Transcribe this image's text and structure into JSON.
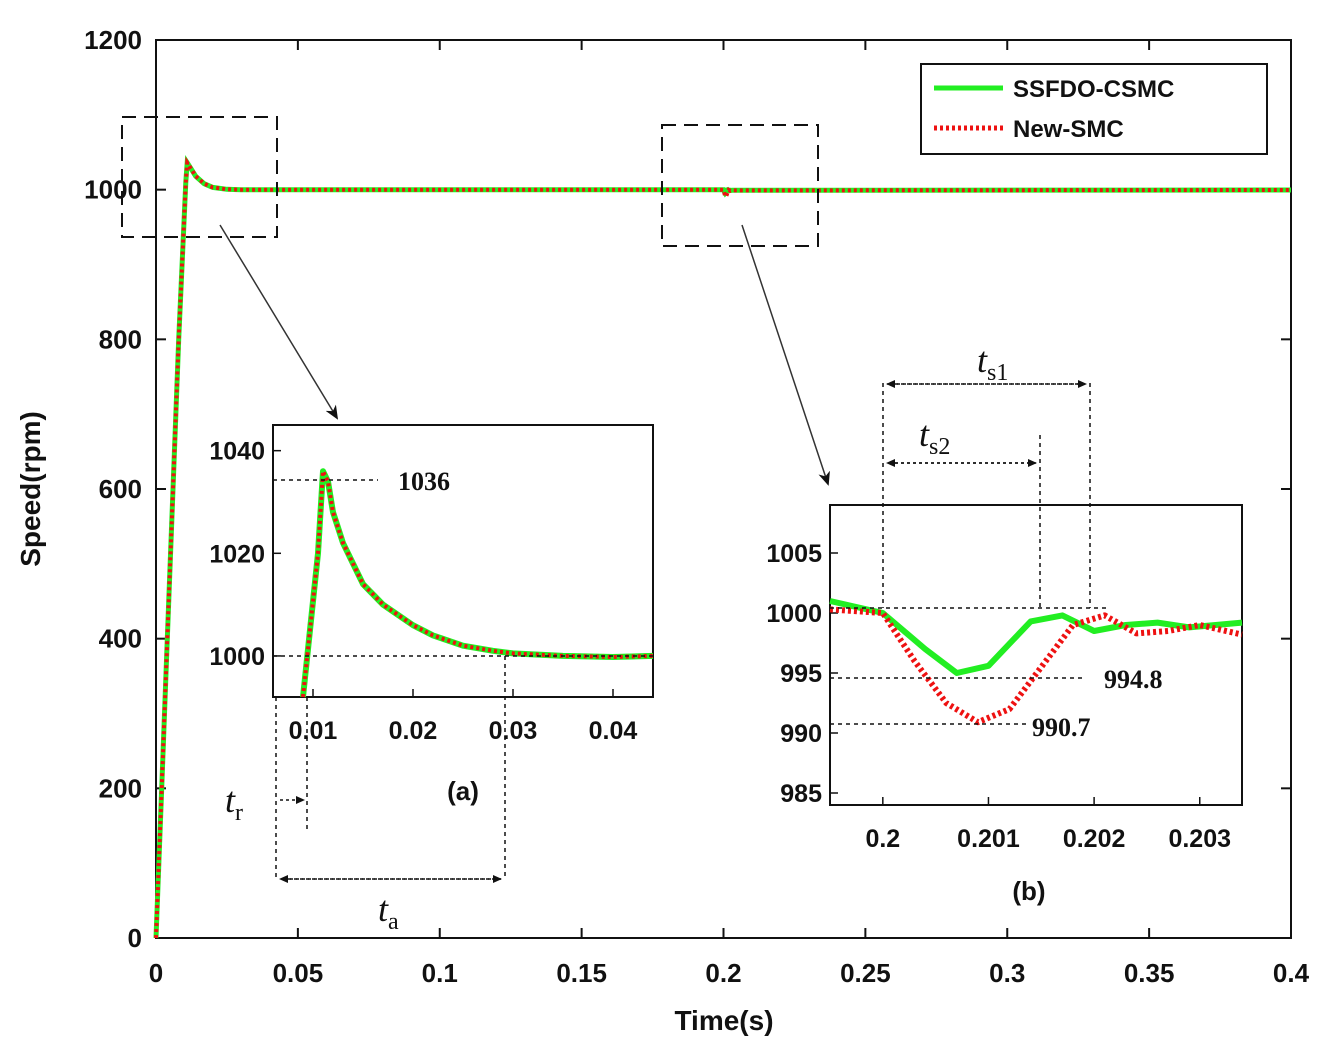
{
  "chart_data": {
    "type": "line",
    "xlabel": "Time(s)",
    "ylabel": "Speed(rpm)",
    "xlim": [
      0,
      0.4
    ],
    "ylim": [
      0,
      1200
    ],
    "xticks": [
      "0",
      "0.05",
      "0.1",
      "0.15",
      "0.2",
      "0.25",
      "0.3",
      "0.35",
      "0.4"
    ],
    "yticks": [
      "0",
      "200",
      "400",
      "600",
      "800",
      "1000",
      "1200"
    ],
    "legend_position": "top-right",
    "colors": {
      "ssfdo": "#22ee22",
      "newsmc": "#ee1111"
    },
    "series": [
      {
        "name": "SSFDO-CSMC",
        "style": "solid",
        "color": "#22ee22",
        "x": [
          0,
          0.002,
          0.004,
          0.006,
          0.008,
          0.0105,
          0.011,
          0.012,
          0.014,
          0.017,
          0.02,
          0.025,
          0.03,
          0.035,
          0.2,
          0.2003,
          0.2006,
          0.2009,
          0.2012,
          0.2015,
          0.2018,
          0.2021,
          0.2024,
          0.2027,
          0.203,
          0.4
        ],
        "values": [
          0,
          200,
          400,
          600,
          800,
          1010,
          1036,
          1030,
          1018,
          1008,
          1003,
          1000.5,
          1000,
          1000,
          1000,
          997,
          995.2,
          996.5,
          999.5,
          1000,
          999.2,
          998.8,
          999.3,
          999.0,
          999.2,
          999.5
        ]
      },
      {
        "name": "New-SMC",
        "style": "dotted",
        "color": "#ee1111",
        "x": [
          0,
          0.002,
          0.004,
          0.006,
          0.008,
          0.0105,
          0.011,
          0.012,
          0.014,
          0.017,
          0.02,
          0.025,
          0.03,
          0.035,
          0.2,
          0.2003,
          0.2006,
          0.2009,
          0.2012,
          0.2015,
          0.2018,
          0.2021,
          0.2024,
          0.2027,
          0.203,
          0.4
        ],
        "values": [
          0,
          200,
          400,
          600,
          800,
          1010,
          1036,
          1030,
          1018,
          1008,
          1003,
          1000.5,
          1000,
          1000,
          1000,
          995,
          991.2,
          990.8,
          993.5,
          997.5,
          999.8,
          999.3,
          998.5,
          998.8,
          999.0,
          999.5
        ]
      }
    ],
    "insets": [
      {
        "id": "a",
        "caption": "(a)",
        "xlim": [
          0.006,
          0.044
        ],
        "ylim": [
          992,
          1045
        ],
        "xticks": [
          "0.01",
          "0.02",
          "0.03",
          "0.04"
        ],
        "yticks": [
          "1000",
          "1020",
          "1040"
        ],
        "peak_label": "1036",
        "peak_value": 1036,
        "steady_value": 1000,
        "rise_time_label": "t",
        "rise_time_sub": "r",
        "settle_label": "t",
        "settle_sub": "a",
        "curve_x": [
          0.009,
          0.0105,
          0.011,
          0.0115,
          0.012,
          0.0125,
          0.013,
          0.014,
          0.015,
          0.017,
          0.02,
          0.022,
          0.025,
          0.028,
          0.03,
          0.035,
          0.04,
          0.044
        ],
        "curve_y": [
          992,
          1020,
          1036,
          1034,
          1028,
          1025,
          1022,
          1018,
          1014,
          1010,
          1006,
          1004,
          1002,
          1001,
          1000.5,
          1000,
          999.8,
          1000
        ]
      },
      {
        "id": "b",
        "caption": "(b)",
        "xlim": [
          0.1995,
          0.2034
        ],
        "ylim": [
          984,
          1009
        ],
        "xticks": [
          "0.2",
          "0.201",
          "0.202",
          "0.203"
        ],
        "yticks": [
          "985",
          "990",
          "995",
          "1000",
          "1005"
        ],
        "dip_label_1": "994.8",
        "dip_value_1": 994.8,
        "dip_label_2": "990.7",
        "dip_value_2": 990.7,
        "ts1_label": "t",
        "ts1_sub": "s1",
        "ts2_label": "t",
        "ts2_sub": "s2",
        "ssfdo_x": [
          0.1995,
          0.2,
          0.2004,
          0.2007,
          0.201,
          0.2014,
          0.2017,
          0.202,
          0.2023,
          0.2026,
          0.2029,
          0.2034
        ],
        "ssfdo_y": [
          1001,
          1000,
          997,
          995,
          995.6,
          999.3,
          999.8,
          998.5,
          999.0,
          999.2,
          998.8,
          999.2
        ],
        "newsmc_x": [
          0.1995,
          0.2,
          0.2003,
          0.2006,
          0.2009,
          0.2012,
          0.2015,
          0.2018,
          0.2021,
          0.2024,
          0.2027,
          0.203,
          0.2034
        ],
        "newsmc_y": [
          1000.3,
          1000,
          996,
          992.5,
          990.9,
          992.0,
          995.5,
          999.0,
          999.8,
          998.3,
          998.5,
          999.0,
          998.2
        ]
      }
    ]
  }
}
